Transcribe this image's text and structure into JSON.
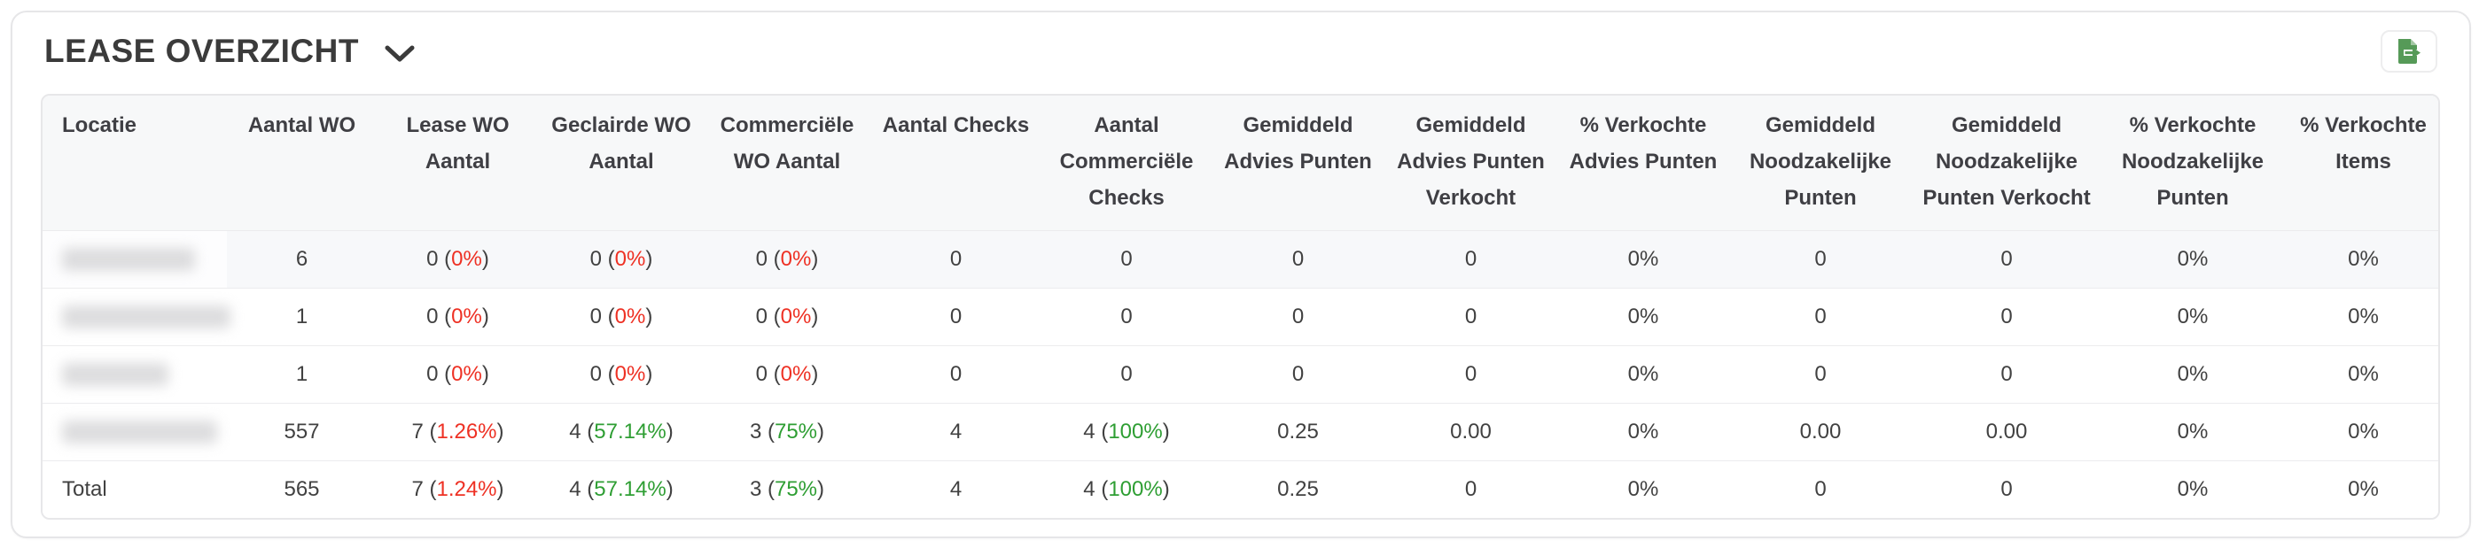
{
  "panel": {
    "title": "LEASE OVERZICHT",
    "collapse_icon": "chevron-down-icon",
    "export_icon": "file-export-icon"
  },
  "colors": {
    "negative_pct": "#ee3124",
    "positive_pct": "#2e9e33",
    "icon_green": "#569a58",
    "header_bg": "#f7f8f9",
    "striped_row_bg": "#f7f8fa",
    "text": "#414141"
  },
  "table": {
    "columns": [
      "Locatie",
      "Aantal WO",
      "Lease WO Aantal",
      "Geclairde WO Aantal",
      "Commerciële WO Aantal",
      "Aantal Checks",
      "Aantal Commerciële Checks",
      "Gemiddeld Advies Punten",
      "Gemiddeld Advies Punten Verkocht",
      "% Verkochte Advies Punten",
      "Gemiddeld Noodzakelijke Punten",
      "Gemiddeld Noodzakelijke Punten Verkocht",
      "% Verkochte Noodzakelijke Punten",
      "% Verkochte Items"
    ],
    "rows": [
      {
        "locatie_redacted": true,
        "redacted_width": 150,
        "cells": [
          "6",
          {
            "v": "0",
            "p": "0%",
            "c": "neg"
          },
          {
            "v": "0",
            "p": "0%",
            "c": "neg"
          },
          {
            "v": "0",
            "p": "0%",
            "c": "neg"
          },
          "0",
          "0",
          "0",
          "0",
          "0%",
          "0",
          "0",
          "0%",
          "0%"
        ]
      },
      {
        "locatie_redacted": true,
        "redacted_width": 190,
        "cells": [
          "1",
          {
            "v": "0",
            "p": "0%",
            "c": "neg"
          },
          {
            "v": "0",
            "p": "0%",
            "c": "neg"
          },
          {
            "v": "0",
            "p": "0%",
            "c": "neg"
          },
          "0",
          "0",
          "0",
          "0",
          "0%",
          "0",
          "0",
          "0%",
          "0%"
        ]
      },
      {
        "locatie_redacted": true,
        "redacted_width": 120,
        "cells": [
          "1",
          {
            "v": "0",
            "p": "0%",
            "c": "neg"
          },
          {
            "v": "0",
            "p": "0%",
            "c": "neg"
          },
          {
            "v": "0",
            "p": "0%",
            "c": "neg"
          },
          "0",
          "0",
          "0",
          "0",
          "0%",
          "0",
          "0",
          "0%",
          "0%"
        ]
      },
      {
        "locatie_redacted": true,
        "redacted_width": 175,
        "cells": [
          "557",
          {
            "v": "7",
            "p": "1.26%",
            "c": "neg"
          },
          {
            "v": "4",
            "p": "57.14%",
            "c": "pos"
          },
          {
            "v": "3",
            "p": "75%",
            "c": "pos"
          },
          "4",
          {
            "v": "4",
            "p": "100%",
            "c": "pos"
          },
          "0.25",
          "0.00",
          "0%",
          "0.00",
          "0.00",
          "0%",
          "0%"
        ]
      }
    ],
    "total_row": {
      "label": "Total",
      "cells": [
        "565",
        {
          "v": "7",
          "p": "1.24%",
          "c": "neg"
        },
        {
          "v": "4",
          "p": "57.14%",
          "c": "pos"
        },
        {
          "v": "3",
          "p": "75%",
          "c": "pos"
        },
        "4",
        {
          "v": "4",
          "p": "100%",
          "c": "pos"
        },
        "0.25",
        "0",
        "0%",
        "0",
        "0",
        "0%",
        "0%"
      ]
    }
  }
}
